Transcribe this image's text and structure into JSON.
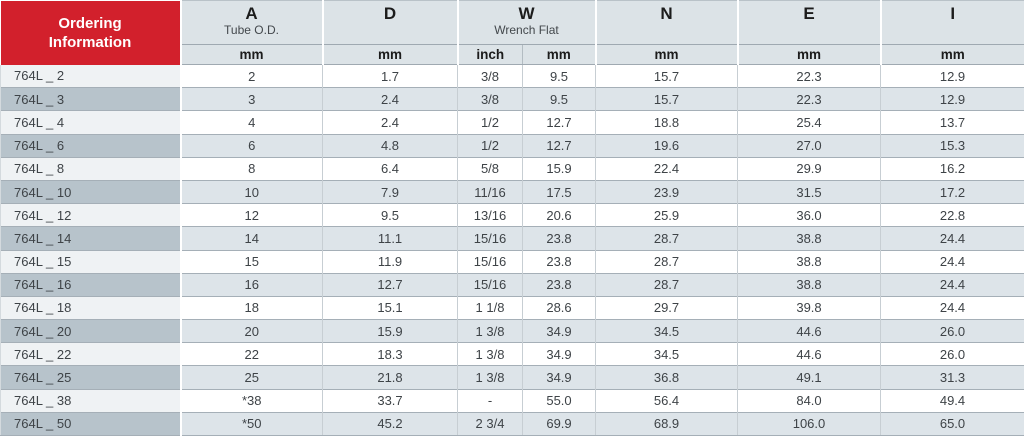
{
  "colors": {
    "accent_red": "#d2202c",
    "header_bg": "#dce3e7",
    "striped_row_bg": "#dde4e9",
    "striped_row_label_bg": "#b7c3cb",
    "plain_row_label_bg": "#eff2f4",
    "grid_line": "#a5afb7",
    "text": "#3e4347"
  },
  "table": {
    "corner_header": {
      "line1": "Ordering",
      "line2": "Information"
    },
    "column_groups": [
      {
        "letter": "A",
        "sublabel": "Tube O.D.",
        "units": [
          "mm"
        ]
      },
      {
        "letter": "D",
        "sublabel": "",
        "units": [
          "mm"
        ]
      },
      {
        "letter": "W",
        "sublabel": "Wrench Flat",
        "units": [
          "inch",
          "mm"
        ]
      },
      {
        "letter": "N",
        "sublabel": "",
        "units": [
          "mm"
        ]
      },
      {
        "letter": "E",
        "sublabel": "",
        "units": [
          "mm"
        ]
      },
      {
        "letter": "I",
        "sublabel": "",
        "units": [
          "mm"
        ]
      }
    ],
    "rows": [
      {
        "model": "764L _ 2",
        "values": [
          "2",
          "1.7",
          "3/8",
          "9.5",
          "15.7",
          "22.3",
          "12.9"
        ]
      },
      {
        "model": "764L _ 3",
        "values": [
          "3",
          "2.4",
          "3/8",
          "9.5",
          "15.7",
          "22.3",
          "12.9"
        ]
      },
      {
        "model": "764L _ 4",
        "values": [
          "4",
          "2.4",
          "1/2",
          "12.7",
          "18.8",
          "25.4",
          "13.7"
        ]
      },
      {
        "model": "764L _ 6",
        "values": [
          "6",
          "4.8",
          "1/2",
          "12.7",
          "19.6",
          "27.0",
          "15.3"
        ]
      },
      {
        "model": "764L _ 8",
        "values": [
          "8",
          "6.4",
          "5/8",
          "15.9",
          "22.4",
          "29.9",
          "16.2"
        ]
      },
      {
        "model": "764L _ 10",
        "values": [
          "10",
          "7.9",
          "11/16",
          "17.5",
          "23.9",
          "31.5",
          "17.2"
        ]
      },
      {
        "model": "764L _ 12",
        "values": [
          "12",
          "9.5",
          "13/16",
          "20.6",
          "25.9",
          "36.0",
          "22.8"
        ]
      },
      {
        "model": "764L _ 14",
        "values": [
          "14",
          "11.1",
          "15/16",
          "23.8",
          "28.7",
          "38.8",
          "24.4"
        ]
      },
      {
        "model": "764L _ 15",
        "values": [
          "15",
          "11.9",
          "15/16",
          "23.8",
          "28.7",
          "38.8",
          "24.4"
        ]
      },
      {
        "model": "764L _ 16",
        "values": [
          "16",
          "12.7",
          "15/16",
          "23.8",
          "28.7",
          "38.8",
          "24.4"
        ]
      },
      {
        "model": "764L _ 18",
        "values": [
          "18",
          "15.1",
          "1 1/8",
          "28.6",
          "29.7",
          "39.8",
          "24.4"
        ]
      },
      {
        "model": "764L _ 20",
        "values": [
          "20",
          "15.9",
          "1 3/8",
          "34.9",
          "34.5",
          "44.6",
          "26.0"
        ]
      },
      {
        "model": "764L _ 22",
        "values": [
          "22",
          "18.3",
          "1 3/8",
          "34.9",
          "34.5",
          "44.6",
          "26.0"
        ]
      },
      {
        "model": "764L _ 25",
        "values": [
          "25",
          "21.8",
          "1 3/8",
          "34.9",
          "36.8",
          "49.1",
          "31.3"
        ]
      },
      {
        "model": "764L _ 38",
        "values": [
          "*38",
          "33.7",
          "-",
          "55.0",
          "56.4",
          "84.0",
          "49.4"
        ]
      },
      {
        "model": "764L _ 50",
        "values": [
          "*50",
          "45.2",
          "2 3/4",
          "69.9",
          "68.9",
          "106.0",
          "65.0"
        ]
      }
    ]
  }
}
